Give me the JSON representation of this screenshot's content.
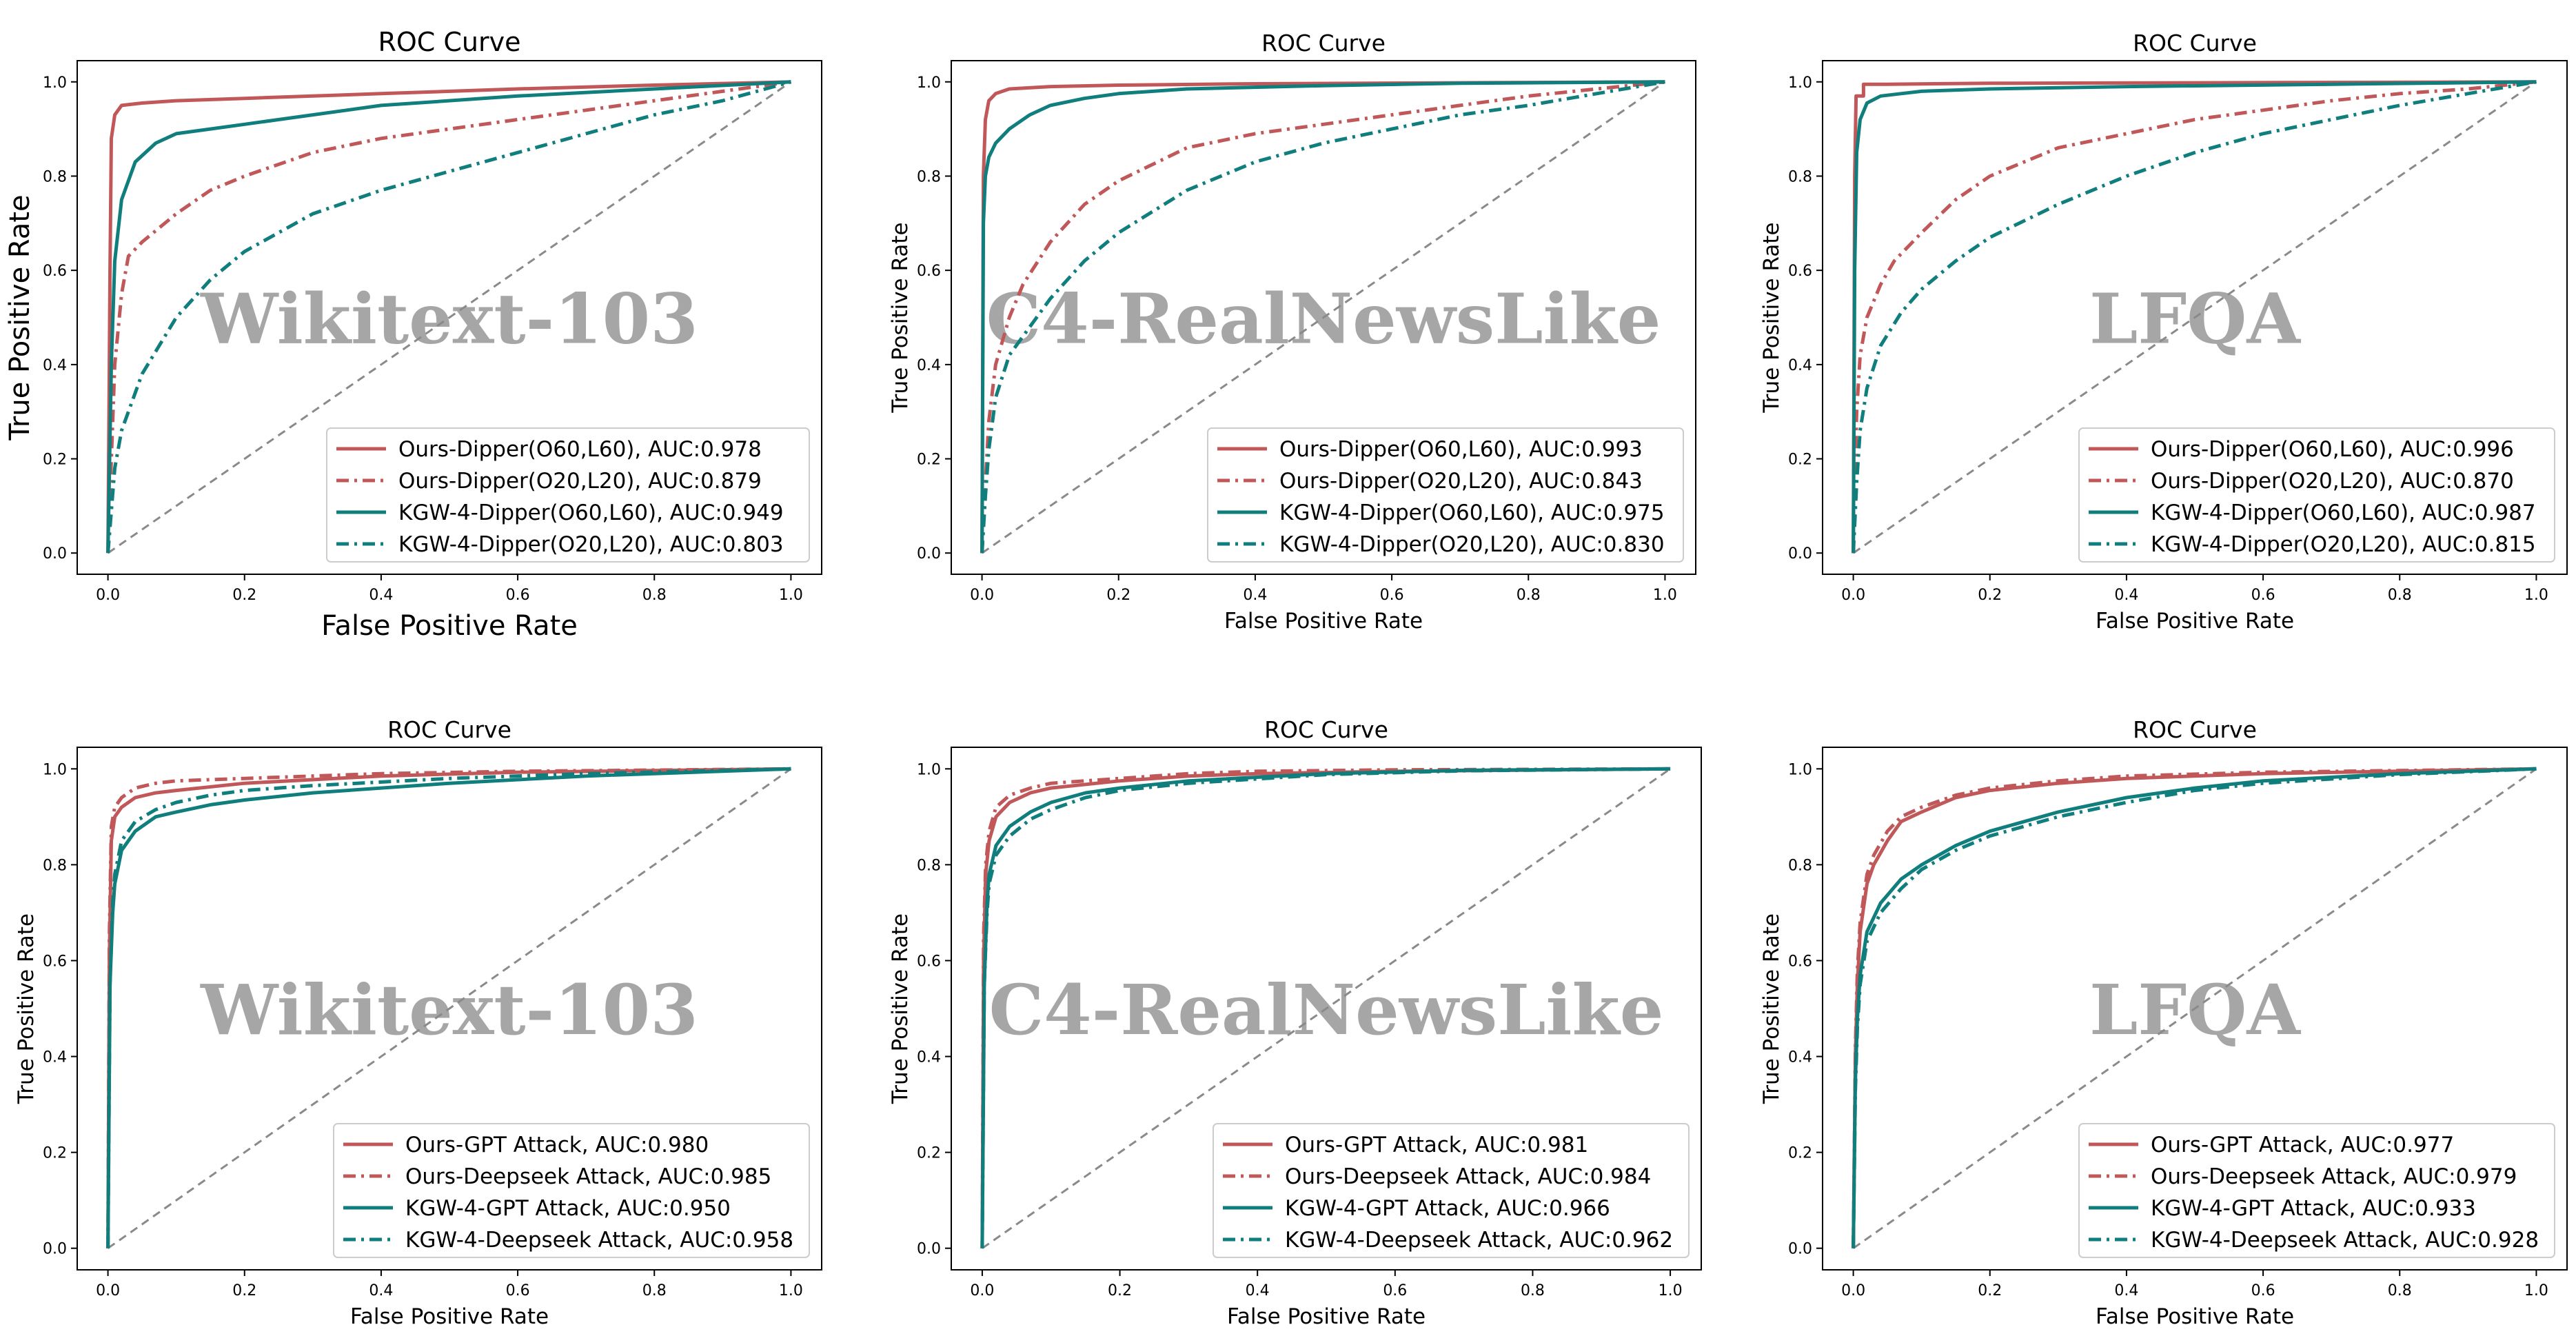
{
  "colors": {
    "ours": "#c0585a",
    "kgw": "#0f7e7c",
    "diagonal": "#8a8a8a",
    "watermark": "#a6a6a6",
    "axis": "#000000"
  },
  "chart_data": [
    {
      "type": "line",
      "title": "ROC Curve",
      "xlabel": "False Positive Rate",
      "ylabel": "True Positive Rate",
      "watermark": "Wikitext-103",
      "xlim": [
        0,
        1
      ],
      "ylim": [
        0,
        1
      ],
      "xticks": [
        "0.0",
        "0.2",
        "0.4",
        "0.6",
        "0.8",
        "1.0"
      ],
      "yticks": [
        "0.0",
        "0.2",
        "0.4",
        "0.6",
        "0.8",
        "1.0"
      ],
      "legend_position": "lower-right",
      "series": [
        {
          "name": "Ours-Dipper(O60,L60), AUC:0.978",
          "color": "ours",
          "style": "solid",
          "x": [
            0,
            0.003,
            0.005,
            0.01,
            0.02,
            0.05,
            0.1,
            0.2,
            0.4,
            0.6,
            0.8,
            1.0
          ],
          "y": [
            0,
            0.6,
            0.88,
            0.93,
            0.95,
            0.955,
            0.96,
            0.965,
            0.975,
            0.985,
            0.993,
            1.0
          ]
        },
        {
          "name": "Ours-Dipper(O20,L20), AUC:0.879",
          "color": "ours",
          "style": "dashdot",
          "x": [
            0,
            0.01,
            0.02,
            0.03,
            0.05,
            0.1,
            0.15,
            0.2,
            0.3,
            0.4,
            0.5,
            0.6,
            0.7,
            0.8,
            0.9,
            1.0
          ],
          "y": [
            0,
            0.4,
            0.55,
            0.63,
            0.66,
            0.72,
            0.77,
            0.8,
            0.85,
            0.88,
            0.9,
            0.92,
            0.94,
            0.96,
            0.98,
            1.0
          ]
        },
        {
          "name": "KGW-4-Dipper(O60,L60), AUC:0.949",
          "color": "kgw",
          "style": "solid",
          "x": [
            0,
            0.005,
            0.01,
            0.02,
            0.04,
            0.07,
            0.1,
            0.15,
            0.2,
            0.3,
            0.4,
            0.6,
            0.8,
            1.0
          ],
          "y": [
            0,
            0.4,
            0.62,
            0.75,
            0.83,
            0.87,
            0.89,
            0.9,
            0.91,
            0.93,
            0.95,
            0.97,
            0.985,
            1.0
          ]
        },
        {
          "name": "KGW-4-Dipper(O20,L20), AUC:0.803",
          "color": "kgw",
          "style": "dashdot",
          "x": [
            0,
            0.01,
            0.02,
            0.05,
            0.1,
            0.15,
            0.2,
            0.3,
            0.4,
            0.5,
            0.6,
            0.7,
            0.8,
            0.9,
            1.0
          ],
          "y": [
            0,
            0.18,
            0.26,
            0.38,
            0.5,
            0.58,
            0.64,
            0.72,
            0.77,
            0.81,
            0.85,
            0.89,
            0.93,
            0.96,
            1.0
          ]
        }
      ]
    },
    {
      "type": "line",
      "title": "ROC Curve",
      "xlabel": "False Positive Rate",
      "ylabel": "True Positive Rate",
      "watermark": "C4-RealNewsLike",
      "xlim": [
        0,
        1
      ],
      "ylim": [
        0,
        1
      ],
      "xticks": [
        "0.0",
        "0.2",
        "0.4",
        "0.6",
        "0.8",
        "1.0"
      ],
      "yticks": [
        "0.0",
        "0.2",
        "0.4",
        "0.6",
        "0.8",
        "1.0"
      ],
      "legend_position": "lower-right",
      "series": [
        {
          "name": "Ours-Dipper(O60,L60), AUC:0.993",
          "color": "ours",
          "style": "solid",
          "x": [
            0,
            0.002,
            0.005,
            0.01,
            0.02,
            0.04,
            0.1,
            0.2,
            0.4,
            0.7,
            1.0
          ],
          "y": [
            0,
            0.8,
            0.92,
            0.96,
            0.975,
            0.985,
            0.99,
            0.993,
            0.996,
            0.998,
            1.0
          ]
        },
        {
          "name": "Ours-Dipper(O20,L20), AUC:0.843",
          "color": "ours",
          "style": "dashdot",
          "x": [
            0,
            0.005,
            0.01,
            0.02,
            0.04,
            0.06,
            0.1,
            0.15,
            0.2,
            0.3,
            0.4,
            0.5,
            0.6,
            0.7,
            0.8,
            0.9,
            1.0
          ],
          "y": [
            0,
            0.15,
            0.28,
            0.4,
            0.5,
            0.57,
            0.66,
            0.74,
            0.79,
            0.86,
            0.89,
            0.91,
            0.93,
            0.95,
            0.97,
            0.985,
            1.0
          ]
        },
        {
          "name": "KGW-4-Dipper(O60,L60), AUC:0.975",
          "color": "kgw",
          "style": "solid",
          "x": [
            0,
            0.002,
            0.005,
            0.01,
            0.02,
            0.04,
            0.07,
            0.1,
            0.15,
            0.2,
            0.3,
            0.5,
            0.7,
            1.0
          ],
          "y": [
            0,
            0.7,
            0.8,
            0.84,
            0.87,
            0.9,
            0.93,
            0.95,
            0.965,
            0.975,
            0.985,
            0.992,
            0.997,
            1.0
          ]
        },
        {
          "name": "KGW-4-Dipper(O20,L20), AUC:0.830",
          "color": "kgw",
          "style": "dashdot",
          "x": [
            0,
            0.005,
            0.01,
            0.02,
            0.04,
            0.07,
            0.1,
            0.15,
            0.2,
            0.3,
            0.4,
            0.5,
            0.6,
            0.7,
            0.8,
            0.9,
            1.0
          ],
          "y": [
            0,
            0.12,
            0.22,
            0.33,
            0.42,
            0.48,
            0.54,
            0.62,
            0.68,
            0.77,
            0.83,
            0.87,
            0.9,
            0.93,
            0.95,
            0.975,
            1.0
          ]
        }
      ]
    },
    {
      "type": "line",
      "title": "ROC Curve",
      "xlabel": "False Positive Rate",
      "ylabel": "True Positive Rate",
      "watermark": "LFQA",
      "xlim": [
        0,
        1
      ],
      "ylim": [
        0,
        1
      ],
      "xticks": [
        "0.0",
        "0.2",
        "0.4",
        "0.6",
        "0.8",
        "1.0"
      ],
      "yticks": [
        "0.0",
        "0.2",
        "0.4",
        "0.6",
        "0.8",
        "1.0"
      ],
      "legend_position": "lower-right",
      "series": [
        {
          "name": "Ours-Dipper(O60,L60), AUC:0.996",
          "color": "ours",
          "style": "solid",
          "x": [
            0,
            0.002,
            0.004,
            0.004,
            0.015,
            0.015,
            0.05,
            0.2,
            0.5,
            1.0
          ],
          "y": [
            0,
            0.8,
            0.97,
            0.97,
            0.97,
            0.995,
            0.995,
            0.997,
            0.998,
            1.0
          ]
        },
        {
          "name": "Ours-Dipper(O20,L20), AUC:0.870",
          "color": "ours",
          "style": "dashdot",
          "x": [
            0,
            0.005,
            0.01,
            0.02,
            0.04,
            0.06,
            0.1,
            0.15,
            0.2,
            0.3,
            0.4,
            0.5,
            0.6,
            0.7,
            0.8,
            0.9,
            1.0
          ],
          "y": [
            0,
            0.3,
            0.42,
            0.5,
            0.57,
            0.62,
            0.68,
            0.75,
            0.8,
            0.86,
            0.89,
            0.92,
            0.94,
            0.96,
            0.975,
            0.985,
            1.0
          ]
        },
        {
          "name": "KGW-4-Dipper(O60,L60), AUC:0.987",
          "color": "kgw",
          "style": "solid",
          "x": [
            0,
            0.002,
            0.005,
            0.01,
            0.02,
            0.04,
            0.07,
            0.1,
            0.2,
            0.4,
            0.7,
            1.0
          ],
          "y": [
            0,
            0.6,
            0.85,
            0.92,
            0.955,
            0.97,
            0.975,
            0.98,
            0.985,
            0.99,
            0.995,
            1.0
          ]
        },
        {
          "name": "KGW-4-Dipper(O20,L20), AUC:0.815",
          "color": "kgw",
          "style": "dashdot",
          "x": [
            0,
            0.005,
            0.01,
            0.02,
            0.04,
            0.07,
            0.1,
            0.15,
            0.2,
            0.3,
            0.4,
            0.5,
            0.6,
            0.7,
            0.8,
            0.9,
            1.0
          ],
          "y": [
            0,
            0.15,
            0.26,
            0.35,
            0.44,
            0.51,
            0.56,
            0.62,
            0.67,
            0.74,
            0.8,
            0.85,
            0.89,
            0.92,
            0.95,
            0.975,
            1.0
          ]
        }
      ]
    },
    {
      "type": "line",
      "title": "ROC Curve",
      "xlabel": "False Positive Rate",
      "ylabel": "True Positive Rate",
      "watermark": "Wikitext-103",
      "xlim": [
        0,
        1
      ],
      "ylim": [
        0,
        1
      ],
      "xticks": [
        "0.0",
        "0.2",
        "0.4",
        "0.6",
        "0.8",
        "1.0"
      ],
      "yticks": [
        "0.0",
        "0.2",
        "0.4",
        "0.6",
        "0.8",
        "1.0"
      ],
      "legend_position": "lower-right",
      "series": [
        {
          "name": "Ours-GPT Attack, AUC:0.980",
          "color": "ours",
          "style": "solid",
          "x": [
            0,
            0.002,
            0.005,
            0.01,
            0.02,
            0.04,
            0.07,
            0.1,
            0.2,
            0.4,
            0.6,
            1.0
          ],
          "y": [
            0,
            0.6,
            0.85,
            0.9,
            0.92,
            0.94,
            0.95,
            0.955,
            0.97,
            0.985,
            0.993,
            1.0
          ]
        },
        {
          "name": "Ours-Deepseek Attack, AUC:0.985",
          "color": "ours",
          "style": "dashdot",
          "x": [
            0,
            0.002,
            0.005,
            0.01,
            0.02,
            0.04,
            0.07,
            0.1,
            0.2,
            0.4,
            0.6,
            1.0
          ],
          "y": [
            0,
            0.65,
            0.88,
            0.92,
            0.94,
            0.96,
            0.97,
            0.975,
            0.98,
            0.99,
            0.995,
            1.0
          ]
        },
        {
          "name": "KGW-4-GPT Attack, AUC:0.950",
          "color": "kgw",
          "style": "solid",
          "x": [
            0,
            0.003,
            0.007,
            0.01,
            0.02,
            0.04,
            0.07,
            0.1,
            0.15,
            0.2,
            0.3,
            0.5,
            0.7,
            1.0
          ],
          "y": [
            0,
            0.55,
            0.7,
            0.76,
            0.83,
            0.87,
            0.9,
            0.91,
            0.925,
            0.935,
            0.95,
            0.97,
            0.985,
            1.0
          ]
        },
        {
          "name": "KGW-4-Deepseek Attack, AUC:0.958",
          "color": "kgw",
          "style": "dashdot",
          "x": [
            0,
            0.003,
            0.007,
            0.01,
            0.02,
            0.04,
            0.07,
            0.1,
            0.15,
            0.2,
            0.3,
            0.5,
            0.7,
            1.0
          ],
          "y": [
            0,
            0.55,
            0.72,
            0.78,
            0.85,
            0.89,
            0.915,
            0.93,
            0.945,
            0.955,
            0.965,
            0.98,
            0.99,
            1.0
          ]
        }
      ]
    },
    {
      "type": "line",
      "title": "ROC Curve",
      "xlabel": "False Positive Rate",
      "ylabel": "True Positive Rate",
      "watermark": "C4-RealNewsLike",
      "xlim": [
        0,
        1
      ],
      "ylim": [
        0,
        1
      ],
      "xticks": [
        "0.0",
        "0.2",
        "0.4",
        "0.6",
        "0.8",
        "1.0"
      ],
      "yticks": [
        "0.0",
        "0.2",
        "0.4",
        "0.6",
        "0.8",
        "1.0"
      ],
      "legend_position": "lower-right",
      "series": [
        {
          "name": "Ours-GPT Attack, AUC:0.981",
          "color": "ours",
          "style": "solid",
          "x": [
            0,
            0.002,
            0.005,
            0.01,
            0.02,
            0.04,
            0.07,
            0.1,
            0.2,
            0.3,
            0.4,
            0.6,
            1.0
          ],
          "y": [
            0,
            0.6,
            0.78,
            0.85,
            0.9,
            0.93,
            0.95,
            0.96,
            0.975,
            0.985,
            0.99,
            0.995,
            1.0
          ]
        },
        {
          "name": "Ours-Deepseek Attack, AUC:0.984",
          "color": "ours",
          "style": "dashdot",
          "x": [
            0,
            0.002,
            0.005,
            0.01,
            0.02,
            0.04,
            0.07,
            0.1,
            0.2,
            0.3,
            0.4,
            0.6,
            1.0
          ],
          "y": [
            0,
            0.65,
            0.8,
            0.87,
            0.92,
            0.945,
            0.96,
            0.97,
            0.98,
            0.99,
            0.995,
            0.998,
            1.0
          ]
        },
        {
          "name": "KGW-4-GPT Attack, AUC:0.966",
          "color": "kgw",
          "style": "solid",
          "x": [
            0,
            0.003,
            0.007,
            0.01,
            0.02,
            0.04,
            0.07,
            0.1,
            0.15,
            0.2,
            0.3,
            0.5,
            0.7,
            1.0
          ],
          "y": [
            0,
            0.55,
            0.72,
            0.78,
            0.84,
            0.88,
            0.91,
            0.93,
            0.95,
            0.96,
            0.975,
            0.99,
            0.997,
            1.0
          ]
        },
        {
          "name": "KGW-4-Deepseek Attack, AUC:0.962",
          "color": "kgw",
          "style": "dashdot",
          "x": [
            0,
            0.003,
            0.007,
            0.01,
            0.02,
            0.04,
            0.07,
            0.1,
            0.15,
            0.2,
            0.3,
            0.5,
            0.7,
            1.0
          ],
          "y": [
            0,
            0.55,
            0.7,
            0.76,
            0.82,
            0.86,
            0.895,
            0.915,
            0.94,
            0.955,
            0.97,
            0.988,
            0.996,
            1.0
          ]
        }
      ]
    },
    {
      "type": "line",
      "title": "ROC Curve",
      "xlabel": "False Positive Rate",
      "ylabel": "True Positive Rate",
      "watermark": "LFQA",
      "xlim": [
        0,
        1
      ],
      "ylim": [
        0,
        1
      ],
      "xticks": [
        "0.0",
        "0.2",
        "0.4",
        "0.6",
        "0.8",
        "1.0"
      ],
      "yticks": [
        "0.0",
        "0.2",
        "0.4",
        "0.6",
        "0.8",
        "1.0"
      ],
      "legend_position": "lower-right",
      "series": [
        {
          "name": "Ours-GPT Attack, AUC:0.977",
          "color": "ours",
          "style": "solid",
          "x": [
            0,
            0.003,
            0.006,
            0.01,
            0.02,
            0.03,
            0.05,
            0.07,
            0.1,
            0.15,
            0.2,
            0.3,
            0.4,
            0.6,
            1.0
          ],
          "y": [
            0,
            0.4,
            0.55,
            0.66,
            0.76,
            0.8,
            0.85,
            0.89,
            0.91,
            0.94,
            0.955,
            0.97,
            0.98,
            0.99,
            1.0
          ]
        },
        {
          "name": "Ours-Deepseek Attack, AUC:0.979",
          "color": "ours",
          "style": "dashdot",
          "x": [
            0,
            0.003,
            0.006,
            0.01,
            0.02,
            0.03,
            0.05,
            0.07,
            0.1,
            0.15,
            0.2,
            0.3,
            0.4,
            0.6,
            1.0
          ],
          "y": [
            0,
            0.42,
            0.58,
            0.68,
            0.78,
            0.82,
            0.87,
            0.9,
            0.92,
            0.945,
            0.96,
            0.975,
            0.985,
            0.993,
            1.0
          ]
        },
        {
          "name": "KGW-4-GPT Attack, AUC:0.933",
          "color": "kgw",
          "style": "solid",
          "x": [
            0,
            0.003,
            0.006,
            0.01,
            0.02,
            0.04,
            0.07,
            0.1,
            0.15,
            0.2,
            0.3,
            0.4,
            0.5,
            0.6,
            0.8,
            1.0
          ],
          "y": [
            0,
            0.35,
            0.48,
            0.57,
            0.66,
            0.72,
            0.77,
            0.8,
            0.84,
            0.87,
            0.91,
            0.94,
            0.96,
            0.975,
            0.99,
            1.0
          ]
        },
        {
          "name": "KGW-4-Deepseek Attack, AUC:0.928",
          "color": "kgw",
          "style": "dashdot",
          "x": [
            0,
            0.003,
            0.006,
            0.01,
            0.02,
            0.04,
            0.07,
            0.1,
            0.15,
            0.2,
            0.3,
            0.4,
            0.5,
            0.6,
            0.8,
            1.0
          ],
          "y": [
            0,
            0.33,
            0.46,
            0.55,
            0.64,
            0.7,
            0.75,
            0.79,
            0.83,
            0.86,
            0.9,
            0.93,
            0.955,
            0.97,
            0.988,
            1.0
          ]
        }
      ]
    }
  ]
}
